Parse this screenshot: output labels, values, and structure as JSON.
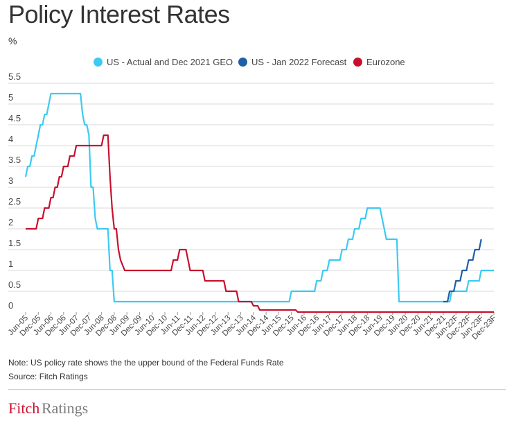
{
  "title": "Policy Interest Rates",
  "unit_label": "%",
  "note": "Note: US policy rate shows the the upper bound of the Federal Funds Rate",
  "source": "Source: Fitch Ratings",
  "logo_text": "FitchRatings",
  "colors": {
    "us_actual": "#3ccaf2",
    "us_forecast": "#1f5fa8",
    "eurozone": "#c8102e",
    "grid": "#d9d9d9"
  },
  "chart_data": {
    "type": "line",
    "title": "Policy Interest Rates",
    "ylabel": "%",
    "ylim": [
      0,
      5.5
    ],
    "yticks": [
      "5.5",
      "5",
      "4.5",
      "4",
      "3.5",
      "3",
      "2.5",
      "2",
      "1.5",
      "1",
      "0.5",
      "0"
    ],
    "grid": "horizontal",
    "legend_position": "top",
    "xlim": [
      "Jun-05",
      "Dec-23F"
    ],
    "xticks": [
      "Jun-05",
      "Dec-05",
      "Jun-06",
      "Dec-06",
      "Jun-07",
      "Dec-07",
      "Jun-08",
      "Dec-08",
      "Jun-09",
      "Dec-09",
      "Jun-10",
      "Dec-10",
      "Jun-11",
      "Dec-11",
      "Jun-12",
      "Dec-12",
      "Jun-13",
      "Dec-13",
      "Jun-14",
      "Dec-14",
      "Jun-15",
      "Dec-15",
      "Jun-16",
      "Dec-16",
      "Jun-17",
      "Dec-17",
      "Jun-18",
      "Dec-18",
      "Jun-19",
      "Dec-19",
      "Jun-20",
      "Dec-20",
      "Jun-21",
      "Dec-21",
      "Jun-22F",
      "Dec-22F",
      "Jun-23F",
      "Dec-23F"
    ],
    "series": [
      {
        "name": "US - Actual and Dec 2021 GEO",
        "color_key": "us_actual",
        "points": [
          [
            "2005-06",
            3.25
          ],
          [
            "2005-07",
            3.5
          ],
          [
            "2005-08",
            3.5
          ],
          [
            "2005-09",
            3.75
          ],
          [
            "2005-10",
            3.75
          ],
          [
            "2005-11",
            4.0
          ],
          [
            "2005-12",
            4.25
          ],
          [
            "2006-01",
            4.5
          ],
          [
            "2006-02",
            4.5
          ],
          [
            "2006-03",
            4.75
          ],
          [
            "2006-04",
            4.75
          ],
          [
            "2006-05",
            5.0
          ],
          [
            "2006-06",
            5.25
          ],
          [
            "2007-08",
            5.25
          ],
          [
            "2007-09",
            4.75
          ],
          [
            "2007-10",
            4.5
          ],
          [
            "2007-11",
            4.5
          ],
          [
            "2007-12",
            4.25
          ],
          [
            "2008-01",
            3.0
          ],
          [
            "2008-02",
            3.0
          ],
          [
            "2008-03",
            2.25
          ],
          [
            "2008-04",
            2.0
          ],
          [
            "2008-09",
            2.0
          ],
          [
            "2008-10",
            1.0
          ],
          [
            "2008-11",
            1.0
          ],
          [
            "2008-12",
            0.25
          ],
          [
            "2015-11",
            0.25
          ],
          [
            "2015-12",
            0.5
          ],
          [
            "2016-11",
            0.5
          ],
          [
            "2016-12",
            0.75
          ],
          [
            "2017-02",
            0.75
          ],
          [
            "2017-03",
            1.0
          ],
          [
            "2017-05",
            1.0
          ],
          [
            "2017-06",
            1.25
          ],
          [
            "2017-11",
            1.25
          ],
          [
            "2017-12",
            1.5
          ],
          [
            "2018-02",
            1.5
          ],
          [
            "2018-03",
            1.75
          ],
          [
            "2018-05",
            1.75
          ],
          [
            "2018-06",
            2.0
          ],
          [
            "2018-08",
            2.0
          ],
          [
            "2018-09",
            2.25
          ],
          [
            "2018-11",
            2.25
          ],
          [
            "2018-12",
            2.5
          ],
          [
            "2019-06",
            2.5
          ],
          [
            "2019-07",
            2.25
          ],
          [
            "2019-08",
            2.0
          ],
          [
            "2019-09",
            1.75
          ],
          [
            "2019-10",
            1.75
          ],
          [
            "2020-02",
            1.75
          ],
          [
            "2020-03",
            0.25
          ],
          [
            "2022-03",
            0.25
          ],
          [
            "2022-04",
            0.5
          ],
          [
            "2022-11",
            0.5
          ],
          [
            "2022-12",
            0.75
          ],
          [
            "2023-05",
            0.75
          ],
          [
            "2023-06",
            1.0
          ],
          [
            "2023-12",
            1.0
          ]
        ]
      },
      {
        "name": "US - Jan 2022 Forecast",
        "color_key": "us_forecast",
        "points": [
          [
            "2021-12",
            0.25
          ],
          [
            "2022-02",
            0.25
          ],
          [
            "2022-03",
            0.5
          ],
          [
            "2022-05",
            0.5
          ],
          [
            "2022-06",
            0.75
          ],
          [
            "2022-08",
            0.75
          ],
          [
            "2022-09",
            1.0
          ],
          [
            "2022-11",
            1.0
          ],
          [
            "2022-12",
            1.25
          ],
          [
            "2023-02",
            1.25
          ],
          [
            "2023-03",
            1.5
          ],
          [
            "2023-05",
            1.5
          ],
          [
            "2023-06",
            1.75
          ]
        ]
      },
      {
        "name": "Eurozone",
        "color_key": "eurozone",
        "points": [
          [
            "2005-06",
            2.0
          ],
          [
            "2005-11",
            2.0
          ],
          [
            "2005-12",
            2.25
          ],
          [
            "2006-02",
            2.25
          ],
          [
            "2006-03",
            2.5
          ],
          [
            "2006-05",
            2.5
          ],
          [
            "2006-06",
            2.75
          ],
          [
            "2006-07",
            2.75
          ],
          [
            "2006-08",
            3.0
          ],
          [
            "2006-09",
            3.0
          ],
          [
            "2006-10",
            3.25
          ],
          [
            "2006-11",
            3.25
          ],
          [
            "2006-12",
            3.5
          ],
          [
            "2007-02",
            3.5
          ],
          [
            "2007-03",
            3.75
          ],
          [
            "2007-05",
            3.75
          ],
          [
            "2007-06",
            4.0
          ],
          [
            "2008-06",
            4.0
          ],
          [
            "2008-07",
            4.25
          ],
          [
            "2008-09",
            4.25
          ],
          [
            "2008-10",
            3.25
          ],
          [
            "2008-11",
            2.5
          ],
          [
            "2008-12",
            2.0
          ],
          [
            "2009-01",
            2.0
          ],
          [
            "2009-02",
            1.5
          ],
          [
            "2009-03",
            1.25
          ],
          [
            "2009-05",
            1.0
          ],
          [
            "2011-03",
            1.0
          ],
          [
            "2011-04",
            1.25
          ],
          [
            "2011-06",
            1.25
          ],
          [
            "2011-07",
            1.5
          ],
          [
            "2011-10",
            1.5
          ],
          [
            "2011-11",
            1.25
          ],
          [
            "2011-12",
            1.0
          ],
          [
            "2012-06",
            1.0
          ],
          [
            "2012-07",
            0.75
          ],
          [
            "2013-04",
            0.75
          ],
          [
            "2013-05",
            0.5
          ],
          [
            "2013-10",
            0.5
          ],
          [
            "2013-11",
            0.25
          ],
          [
            "2014-05",
            0.25
          ],
          [
            "2014-06",
            0.15
          ],
          [
            "2014-08",
            0.15
          ],
          [
            "2014-09",
            0.05
          ],
          [
            "2016-02",
            0.05
          ],
          [
            "2016-03",
            0.0
          ],
          [
            "2023-12",
            0.0
          ]
        ]
      }
    ]
  }
}
